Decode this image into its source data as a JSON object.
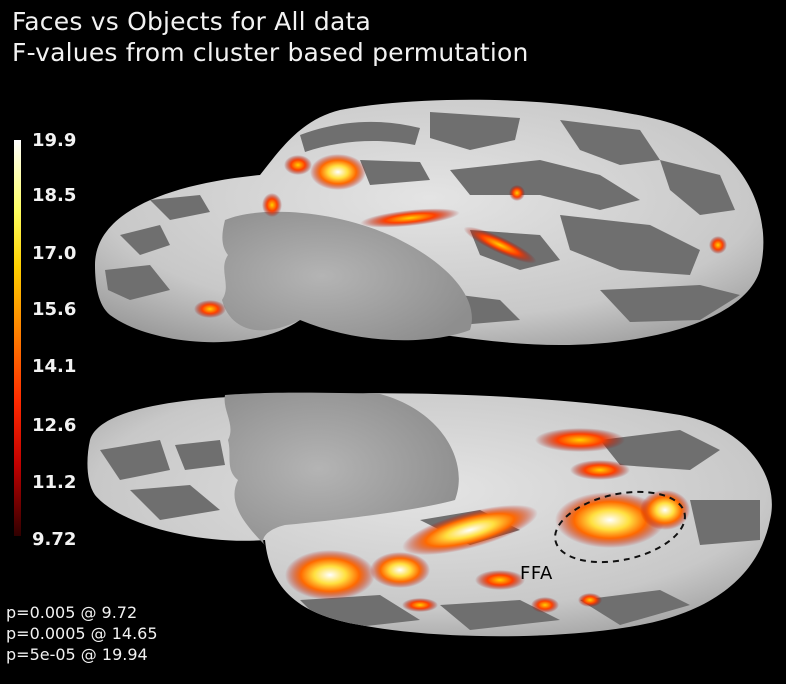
{
  "title": {
    "line1": "Faces vs Objects for All data",
    "line2": "F-values from cluster based permutation"
  },
  "colorbar": {
    "ticks": [
      "19.9",
      "18.5",
      "17.0",
      "15.6",
      "14.1",
      "12.6",
      "11.2",
      "9.72"
    ],
    "colors": [
      "#ffffff",
      "#ffff60",
      "#ffd000",
      "#ff7a00",
      "#ff2a00",
      "#c00000",
      "#300000"
    ]
  },
  "pvalues": [
    "p=0.005 @ 9.72",
    "p=0.0005 @ 14.65",
    "p=5e-05 @ 19.94"
  ],
  "annotation": {
    "label": "FFA"
  },
  "colors": {
    "background": "#000000",
    "cortex_light": "#cfcfcf",
    "cortex_dark": "#707070",
    "medial_wall": "#a8a8a8"
  }
}
